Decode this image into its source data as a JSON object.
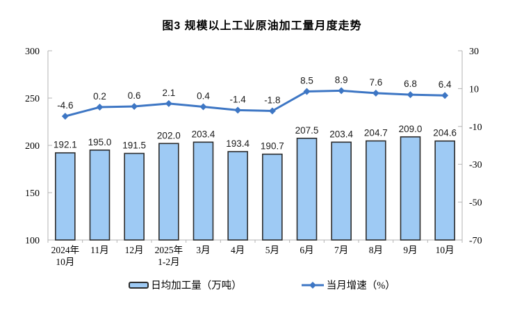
{
  "chart_data": {
    "type": "bar+line combo",
    "title": "图3 规模以上工业原油加工量月度走势",
    "categories": [
      [
        "2024年",
        "10月"
      ],
      [
        "11月"
      ],
      [
        "12月"
      ],
      [
        "2025年",
        "1-2月"
      ],
      [
        "3月"
      ],
      [
        "4月"
      ],
      [
        "5月"
      ],
      [
        "6月"
      ],
      [
        "7月"
      ],
      [
        "8月"
      ],
      [
        "9月"
      ],
      [
        "10月"
      ]
    ],
    "series": [
      {
        "name": "日均加工量（万吨）",
        "type": "bar",
        "axis": "left",
        "values": [
          192.1,
          195.0,
          191.5,
          202.0,
          203.4,
          193.4,
          190.7,
          207.5,
          203.4,
          204.7,
          209.0,
          204.6
        ]
      },
      {
        "name": "当月增速（%）",
        "type": "line",
        "axis": "right",
        "values": [
          -4.6,
          0.2,
          0.6,
          2.1,
          0.4,
          -1.4,
          -1.8,
          8.5,
          8.9,
          7.6,
          6.8,
          6.4
        ]
      }
    ],
    "left_axis": {
      "min": 100,
      "max": 300,
      "ticks": [
        300,
        250,
        200,
        150,
        100
      ]
    },
    "right_axis": {
      "min": -70,
      "max": 30,
      "ticks": [
        30,
        10,
        -10,
        -30,
        -50,
        -70
      ]
    },
    "grid": false,
    "legend_position": "bottom",
    "colors": {
      "bar_fill": "#9ECAF4",
      "bar_border": "#2B2B2B",
      "line": "#3D76C4",
      "axis": "#B3B3B3",
      "label": "#000000"
    }
  }
}
